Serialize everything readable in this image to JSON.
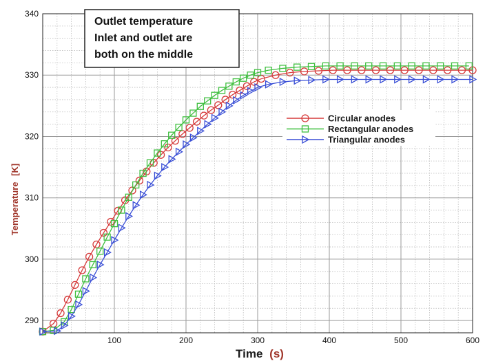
{
  "chart_data": {
    "type": "line",
    "title": "",
    "xlabel": "Time (s)",
    "xlabel_main": "Time",
    "xlabel_unit": "(s)",
    "ylabel": "Temperature [K]",
    "ylabel_main": "Temperature",
    "ylabel_unit": "[K]",
    "xlim": [
      0,
      600
    ],
    "ylim": [
      288,
      340
    ],
    "xticks": [
      100,
      200,
      300,
      400,
      500,
      600
    ],
    "yticks": [
      290,
      300,
      310,
      320,
      330,
      340
    ],
    "grid": true,
    "legend_position": "right-middle",
    "annotation": [
      "Outlet temperature",
      "Inlet and outlet are",
      "both on the middle"
    ],
    "label_color": "#a0362b",
    "series": [
      {
        "name": "Circular anodes",
        "color": "#d63a3a",
        "marker": "circle",
        "x": [
          0,
          15,
          25,
          35,
          45,
          55,
          65,
          75,
          85,
          95,
          105,
          115,
          125,
          135,
          145,
          155,
          165,
          175,
          185,
          195,
          205,
          215,
          225,
          235,
          245,
          255,
          265,
          275,
          285,
          295,
          305,
          325,
          345,
          365,
          385,
          405,
          425,
          445,
          465,
          485,
          505,
          525,
          545,
          565,
          585,
          600
        ],
        "y": [
          288.2,
          289.5,
          291.2,
          293.4,
          295.8,
          298.2,
          300.4,
          302.4,
          304.3,
          306.1,
          307.9,
          309.6,
          311.2,
          312.8,
          314.3,
          315.7,
          317.0,
          318.2,
          319.3,
          320.4,
          321.4,
          322.4,
          323.4,
          324.3,
          325.1,
          326.0,
          326.8,
          327.5,
          328.2,
          328.9,
          329.4,
          330.0,
          330.4,
          330.6,
          330.7,
          330.8,
          330.8,
          330.8,
          330.8,
          330.8,
          330.8,
          330.8,
          330.8,
          330.8,
          330.8,
          330.8
        ]
      },
      {
        "name": "Rectangular anodes",
        "color": "#3fbf3f",
        "marker": "square",
        "x": [
          0,
          15,
          30,
          40,
          50,
          60,
          70,
          80,
          90,
          100,
          110,
          120,
          130,
          140,
          150,
          160,
          170,
          180,
          190,
          200,
          210,
          220,
          230,
          240,
          250,
          260,
          270,
          280,
          290,
          300,
          315,
          335,
          355,
          375,
          395,
          415,
          435,
          455,
          475,
          495,
          515,
          535,
          555,
          575,
          595
        ],
        "y": [
          288.2,
          288.4,
          289.8,
          291.8,
          294.3,
          296.8,
          299.1,
          301.3,
          303.6,
          305.8,
          308.0,
          310.1,
          312.1,
          314.0,
          315.7,
          317.3,
          318.8,
          320.2,
          321.5,
          322.7,
          323.8,
          324.9,
          325.8,
          326.7,
          327.5,
          328.2,
          328.9,
          329.5,
          330.0,
          330.4,
          330.8,
          331.1,
          331.3,
          331.4,
          331.5,
          331.5,
          331.5,
          331.5,
          331.5,
          331.5,
          331.5,
          331.5,
          331.5,
          331.5,
          331.5
        ]
      },
      {
        "name": "Triangular anodes",
        "color": "#3a4fd6",
        "marker": "triangle-right",
        "x": [
          0,
          20,
          30,
          40,
          50,
          60,
          70,
          80,
          90,
          100,
          110,
          120,
          130,
          140,
          150,
          160,
          170,
          180,
          190,
          200,
          210,
          220,
          230,
          240,
          250,
          260,
          270,
          280,
          290,
          300,
          315,
          335,
          355,
          375,
          395,
          415,
          435,
          455,
          475,
          495,
          515,
          535,
          555,
          575,
          600
        ],
        "y": [
          288.2,
          288.3,
          289.2,
          290.7,
          292.6,
          294.8,
          297.0,
          299.1,
          301.1,
          303.1,
          305.1,
          307.0,
          308.8,
          310.5,
          312.1,
          313.6,
          315.0,
          316.3,
          317.5,
          318.7,
          319.8,
          320.9,
          322.0,
          323.0,
          324.0,
          325.0,
          325.9,
          326.7,
          327.4,
          328.0,
          328.5,
          328.9,
          329.1,
          329.2,
          329.3,
          329.3,
          329.3,
          329.3,
          329.3,
          329.3,
          329.3,
          329.3,
          329.3,
          329.3,
          329.3
        ]
      }
    ]
  }
}
